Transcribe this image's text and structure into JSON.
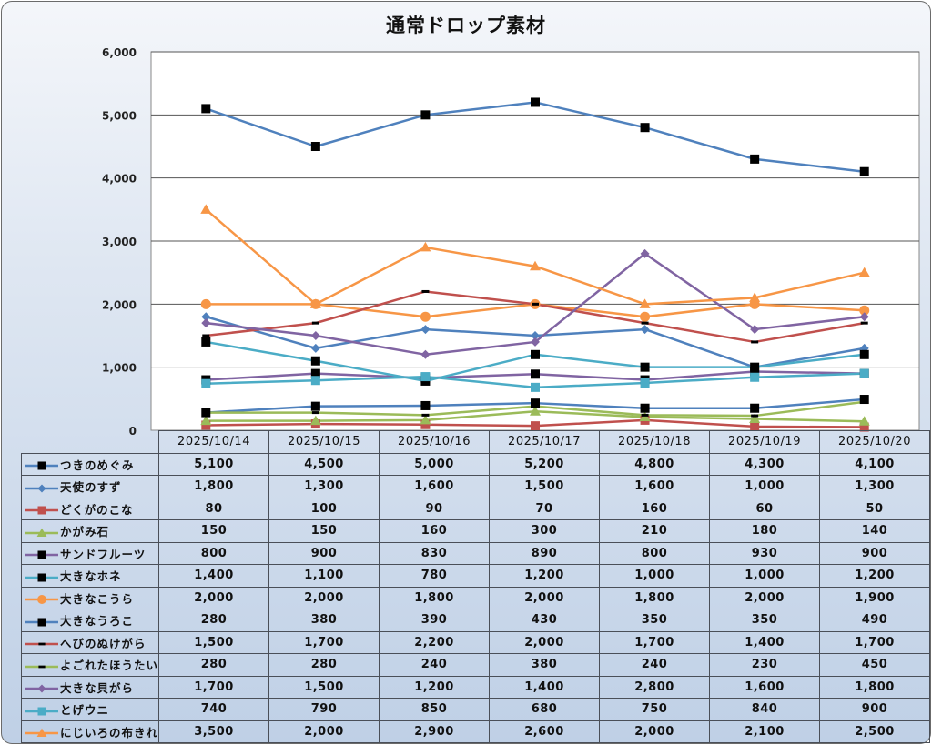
{
  "chart_data": {
    "type": "line",
    "title": "通常ドロップ素材",
    "xlabel": "",
    "ylabel": "",
    "ylim": [
      0,
      6000
    ],
    "yticks": [
      0,
      1000,
      2000,
      3000,
      4000,
      5000,
      6000
    ],
    "ytick_labels": [
      "0",
      "1,000",
      "2,000",
      "3,000",
      "4,000",
      "5,000",
      "6,000"
    ],
    "grid": true,
    "legend": "data-table-left",
    "categories": [
      "2025/10/14",
      "2025/10/15",
      "2025/10/16",
      "2025/10/17",
      "2025/10/18",
      "2025/10/19",
      "2025/10/20"
    ],
    "series": [
      {
        "name": "つきのめぐみ",
        "color": "#4f81bd",
        "marker": "square",
        "marker_color": "#000000",
        "values": [
          5100,
          4500,
          5000,
          5200,
          4800,
          4300,
          4100
        ],
        "labels": [
          "5,100",
          "4,500",
          "5,000",
          "5,200",
          "4,800",
          "4,300",
          "4,100"
        ]
      },
      {
        "name": "天使のすず",
        "color": "#4f81bd",
        "marker": "diamond",
        "marker_color": "#4f81bd",
        "values": [
          1800,
          1300,
          1600,
          1500,
          1600,
          1000,
          1300
        ],
        "labels": [
          "1,800",
          "1,300",
          "1,600",
          "1,500",
          "1,600",
          "1,000",
          "1,300"
        ]
      },
      {
        "name": "どくがのこな",
        "color": "#c0504d",
        "marker": "square",
        "marker_color": "#c0504d",
        "values": [
          80,
          100,
          90,
          70,
          160,
          60,
          50
        ],
        "labels": [
          "80",
          "100",
          "90",
          "70",
          "160",
          "60",
          "50"
        ]
      },
      {
        "name": "かがみ石",
        "color": "#9bbb59",
        "marker": "triangle",
        "marker_color": "#9bbb59",
        "values": [
          150,
          150,
          160,
          300,
          210,
          180,
          140
        ],
        "labels": [
          "150",
          "150",
          "160",
          "300",
          "210",
          "180",
          "140"
        ]
      },
      {
        "name": "サンドフルーツ",
        "color": "#8064a2",
        "marker": "square",
        "marker_color": "#000000",
        "values": [
          800,
          900,
          830,
          890,
          800,
          930,
          900
        ],
        "labels": [
          "800",
          "900",
          "830",
          "890",
          "800",
          "930",
          "900"
        ]
      },
      {
        "name": "大きなホネ",
        "color": "#4bacc6",
        "marker": "square",
        "marker_color": "#000000",
        "values": [
          1400,
          1100,
          780,
          1200,
          1000,
          1000,
          1200
        ],
        "labels": [
          "1,400",
          "1,100",
          "780",
          "1,200",
          "1,000",
          "1,000",
          "1,200"
        ]
      },
      {
        "name": "大きなこうら",
        "color": "#f79646",
        "marker": "circle",
        "marker_color": "#f79646",
        "values": [
          2000,
          2000,
          1800,
          2000,
          1800,
          2000,
          1900
        ],
        "labels": [
          "2,000",
          "2,000",
          "1,800",
          "2,000",
          "1,800",
          "2,000",
          "1,900"
        ]
      },
      {
        "name": "大きなうろこ",
        "color": "#4f81bd",
        "marker": "square",
        "marker_color": "#000000",
        "values": [
          280,
          380,
          390,
          430,
          350,
          350,
          490
        ],
        "labels": [
          "280",
          "380",
          "390",
          "430",
          "350",
          "350",
          "490"
        ]
      },
      {
        "name": "へびのぬけがら",
        "color": "#c0504d",
        "marker": "dash",
        "marker_color": "#000000",
        "values": [
          1500,
          1700,
          2200,
          2000,
          1700,
          1400,
          1700
        ],
        "labels": [
          "1,500",
          "1,700",
          "2,200",
          "2,000",
          "1,700",
          "1,400",
          "1,700"
        ]
      },
      {
        "name": "よごれたほうたい",
        "color": "#9bbb59",
        "marker": "dash",
        "marker_color": "#000000",
        "values": [
          280,
          280,
          240,
          380,
          240,
          230,
          450
        ],
        "labels": [
          "280",
          "280",
          "240",
          "380",
          "240",
          "230",
          "450"
        ]
      },
      {
        "name": "大きな貝がら",
        "color": "#8064a2",
        "marker": "diamond",
        "marker_color": "#8064a2",
        "values": [
          1700,
          1500,
          1200,
          1400,
          2800,
          1600,
          1800
        ],
        "labels": [
          "1,700",
          "1,500",
          "1,200",
          "1,400",
          "2,800",
          "1,600",
          "1,800"
        ]
      },
      {
        "name": "とげウニ",
        "color": "#4bacc6",
        "marker": "square",
        "marker_color": "#4bacc6",
        "values": [
          740,
          790,
          850,
          680,
          750,
          840,
          900
        ],
        "labels": [
          "740",
          "790",
          "850",
          "680",
          "750",
          "840",
          "900"
        ]
      },
      {
        "name": "にじいろの布きれ",
        "color": "#f79646",
        "marker": "triangle",
        "marker_color": "#f79646",
        "values": [
          3500,
          2000,
          2900,
          2600,
          2000,
          2100,
          2500
        ],
        "labels": [
          "3,500",
          "2,000",
          "2,900",
          "2,600",
          "2,000",
          "2,100",
          "2,500"
        ]
      }
    ]
  }
}
